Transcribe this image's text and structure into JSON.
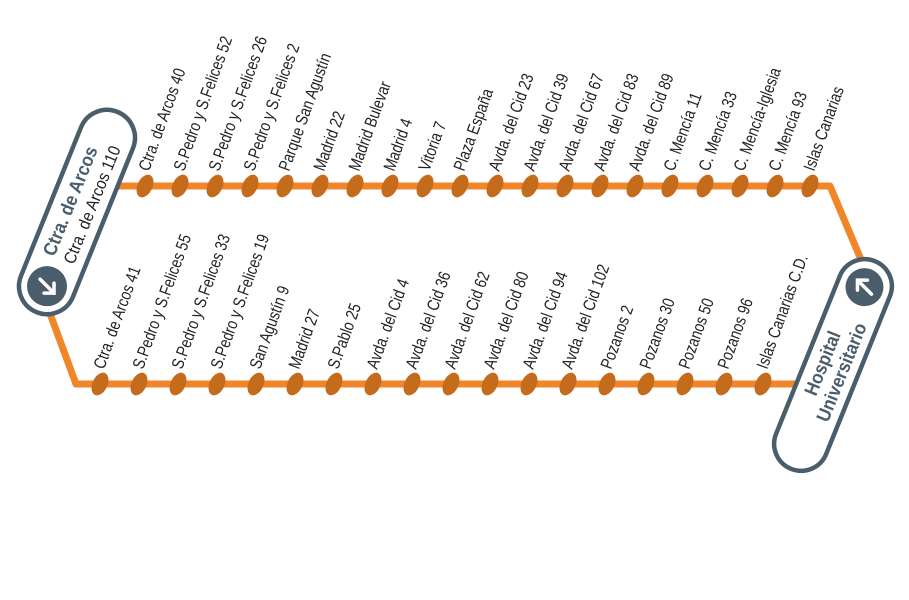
{
  "colors": {
    "line": "#f0852a",
    "stop": "#c46b1c",
    "terminal": "#4a5d6b"
  },
  "terminal_start": {
    "title": "Ctra. de Arcos",
    "subtitle": "Ctra. de Arcos 110",
    "icon": "arrow-down-right-icon"
  },
  "terminal_end": {
    "title_line1": "Hospital",
    "title_line2": "Universitario",
    "icon": "arrow-up-left-icon"
  },
  "outbound_stops": [
    "Ctra. de Arcos 40",
    "S.Pedro y S.Felices 52",
    "S.Pedro y S.Felices 26",
    "S.Pedro y S.Felices 2",
    "Parque San Agustín",
    "Madrid 22",
    "Madrid Bulevar",
    "Madrid 4",
    "Vitoria 7",
    "Plaza España",
    "Avda. del Cid 23",
    "Avda. del Cid 39",
    "Avda. del Cid 67",
    "Avda. del Cid 83",
    "Avda. del Cid 89",
    "C. Mencía 11",
    "C. Mencía 33",
    "C. Mencía-Iglesia",
    "C. Mencía 93",
    "Islas Canarias"
  ],
  "return_stops": [
    "Ctra. de Arcos 41",
    "S.Pedro y S.Felices 55",
    "S.Pedro y S.Felices 33",
    "S.Pedro y S.Felices 19",
    "San Agustín 9",
    "Madrid 27",
    "S.Pablo 25",
    "Avda. del Cid 4",
    "Avda. del Cid 36",
    "Avda. del Cid 62",
    "Avda. del Cid 80",
    "Avda. del Cid 94",
    "Avda. del Cid 102",
    "Pozanos 2",
    "Pozanos 30",
    "Pozanos 50",
    "Pozanos 96",
    "Islas Canarias C.D."
  ]
}
